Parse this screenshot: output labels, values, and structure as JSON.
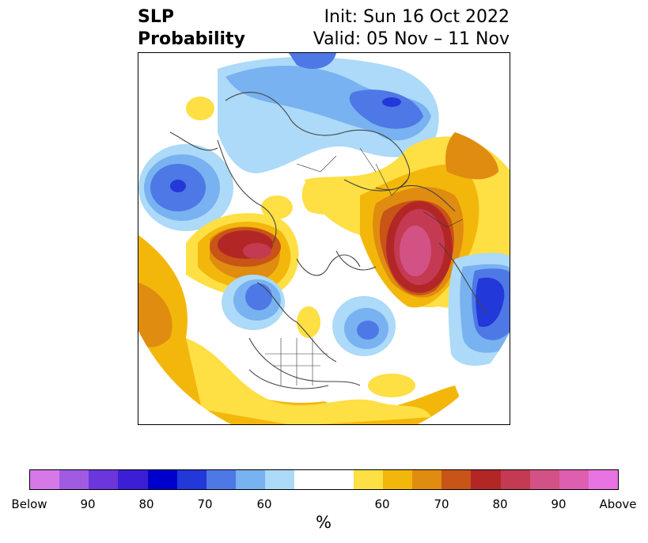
{
  "title": {
    "left_line1": "SLP",
    "left_line2": "Probability",
    "right_line1": "Init: Sun 16 Oct 2022",
    "right_line2": "Valid: 05 Nov – 11 Nov"
  },
  "colorbar": {
    "label": "%",
    "ticks": [
      "Below",
      "90",
      "80",
      "70",
      "60",
      "60",
      "70",
      "80",
      "90",
      "Above"
    ],
    "colors": [
      "#d678e8",
      "#a15be3",
      "#6b36dc",
      "#3c1fd4",
      "#0000cc",
      "#2238d9",
      "#4d78e6",
      "#78b2f0",
      "#acdaf8",
      "#ffffff",
      "#ffffff",
      "#fedf44",
      "#f3b70c",
      "#e08c10",
      "#c85418",
      "#b22726",
      "#c43a52",
      "#d35286",
      "#de5fb0",
      "#e873e3"
    ]
  },
  "map": {
    "projection": "north-polar-stereographic",
    "features": [
      "sea-level-pressure-anomaly-probability",
      "coastlines",
      "country-borders",
      "state-borders"
    ]
  }
}
